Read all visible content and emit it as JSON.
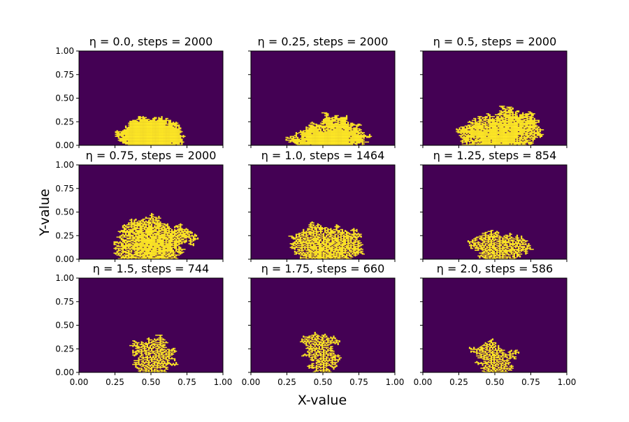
{
  "figure": {
    "xlabel": "X-value",
    "ylabel": "Y-value"
  },
  "chart_data": {
    "type": "heatmap",
    "grid": false,
    "xlim": [
      0,
      1
    ],
    "ylim": [
      0,
      1
    ],
    "xticks": [
      "0.00",
      "0.25",
      "0.50",
      "0.75",
      "1.00"
    ],
    "yticks": [
      "0.00",
      "0.25",
      "0.50",
      "0.75",
      "1.00"
    ],
    "colors": {
      "background": "#440154",
      "cluster": "#fde725"
    },
    "panels": [
      {
        "eta": "0.0",
        "steps": "2000",
        "title_prefix": "η = 0.0, steps = ",
        "title_value": "2000"
      },
      {
        "eta": "0.25",
        "steps": "2000",
        "title_prefix": "η = 0.25, steps = ",
        "title_value": "2000"
      },
      {
        "eta": "0.5",
        "steps": "2000",
        "title_prefix": "η = 0.5, steps = ",
        "title_value": "2000"
      },
      {
        "eta": "0.75",
        "steps": "2000",
        "title_prefix": "η = 0.75, steps = ",
        "title_value": "2000"
      },
      {
        "eta": "1.0",
        "steps": "1464",
        "title_prefix": "η = 1.0, steps = ",
        "title_value": "1464"
      },
      {
        "eta": "1.25",
        "steps": "854",
        "title_prefix": "η = 1.25, steps = ",
        "title_value": "854"
      },
      {
        "eta": "1.5",
        "steps": "744",
        "title_prefix": "η = 1.5, steps = ",
        "title_value": "744"
      },
      {
        "eta": "1.75",
        "steps": "660",
        "title_prefix": "η = 1.75, steps = ",
        "title_value": "660"
      },
      {
        "eta": "2.0",
        "steps": "586",
        "title_prefix": "η = 2.0, steps = ",
        "title_value": "586"
      }
    ]
  }
}
